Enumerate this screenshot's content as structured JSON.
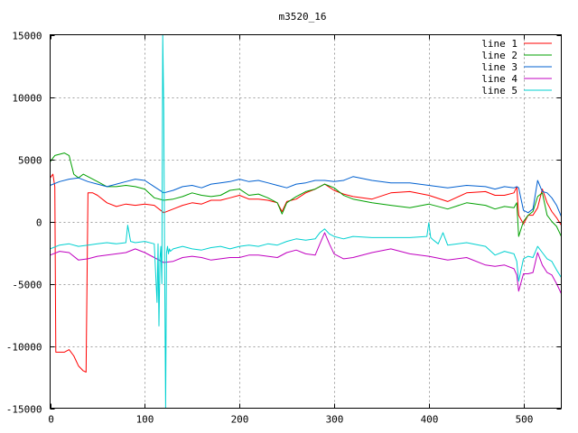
{
  "chart_data": {
    "type": "line",
    "title": "m3520_16",
    "xlabel": "",
    "ylabel": "",
    "xlim": [
      0,
      540
    ],
    "ylim": [
      -15000,
      15000
    ],
    "x_ticks": [
      0,
      100,
      200,
      300,
      400,
      500
    ],
    "y_ticks": [
      -15000,
      -10000,
      -5000,
      0,
      5000,
      10000,
      15000
    ],
    "grid": true,
    "legend_position": "top-right",
    "series": [
      {
        "name": "line 1",
        "color": "#ff0000",
        "x": [
          0,
          3,
          5,
          6,
          10,
          15,
          20,
          25,
          30,
          35,
          38,
          40,
          45,
          50,
          60,
          70,
          80,
          90,
          100,
          110,
          120,
          130,
          140,
          150,
          160,
          170,
          180,
          190,
          200,
          210,
          220,
          230,
          240,
          245,
          250,
          260,
          270,
          280,
          290,
          300,
          310,
          320,
          340,
          360,
          380,
          400,
          420,
          440,
          460,
          470,
          480,
          490,
          493,
          495,
          500,
          505,
          510,
          515,
          520,
          525,
          530,
          535,
          540
        ],
        "y": [
          3500,
          3800,
          2800,
          -10500,
          -10500,
          -10500,
          -10300,
          -10800,
          -11600,
          -12000,
          -12100,
          2300,
          2300,
          2100,
          1500,
          1200,
          1400,
          1300,
          1400,
          1300,
          700,
          1000,
          1300,
          1500,
          1400,
          1700,
          1700,
          1900,
          2100,
          1800,
          1800,
          1700,
          1500,
          800,
          1600,
          1800,
          2300,
          2600,
          3000,
          2500,
          2200,
          2000,
          1800,
          2300,
          2400,
          2100,
          1600,
          2300,
          2400,
          2100,
          2100,
          2300,
          2800,
          500,
          -200,
          500,
          500,
          1100,
          2600,
          1500,
          800,
          300,
          -300
        ]
      },
      {
        "name": "line 2",
        "color": "#00a000",
        "x": [
          0,
          5,
          10,
          15,
          20,
          25,
          30,
          35,
          40,
          45,
          50,
          60,
          70,
          80,
          90,
          100,
          110,
          120,
          130,
          140,
          150,
          160,
          170,
          180,
          190,
          200,
          210,
          220,
          230,
          240,
          245,
          250,
          260,
          270,
          280,
          290,
          300,
          310,
          320,
          340,
          360,
          380,
          400,
          420,
          440,
          460,
          470,
          480,
          490,
          493,
          495,
          500,
          505,
          510,
          515,
          520,
          525,
          530,
          535,
          540
        ],
        "y": [
          4800,
          5300,
          5400,
          5500,
          5300,
          3800,
          3500,
          3800,
          3600,
          3400,
          3200,
          2800,
          2800,
          2900,
          2800,
          2600,
          1900,
          1700,
          1800,
          2000,
          2300,
          2100,
          2000,
          2100,
          2500,
          2600,
          2100,
          2200,
          1900,
          1500,
          600,
          1500,
          2000,
          2400,
          2600,
          3000,
          2700,
          2100,
          1800,
          1500,
          1300,
          1100,
          1400,
          1000,
          1500,
          1300,
          1000,
          1200,
          1100,
          1500,
          -1200,
          0,
          500,
          800,
          2000,
          2300,
          500,
          0,
          -400,
          -1200
        ]
      },
      {
        "name": "line 3",
        "color": "#0060d0",
        "x": [
          0,
          10,
          20,
          30,
          40,
          50,
          60,
          70,
          80,
          90,
          100,
          110,
          120,
          130,
          140,
          150,
          160,
          170,
          180,
          190,
          200,
          210,
          220,
          230,
          240,
          250,
          260,
          270,
          280,
          290,
          300,
          310,
          320,
          340,
          360,
          380,
          400,
          420,
          440,
          460,
          470,
          480,
          490,
          493,
          495,
          500,
          505,
          510,
          515,
          520,
          525,
          530,
          535,
          540
        ],
        "y": [
          2900,
          3200,
          3400,
          3500,
          3200,
          3000,
          2800,
          3000,
          3200,
          3400,
          3300,
          2800,
          2300,
          2500,
          2800,
          2900,
          2700,
          3000,
          3100,
          3200,
          3400,
          3200,
          3300,
          3100,
          2900,
          2700,
          3000,
          3100,
          3300,
          3300,
          3200,
          3300,
          3600,
          3300,
          3100,
          3100,
          2900,
          2700,
          2900,
          2800,
          2600,
          2800,
          2700,
          2800,
          2700,
          900,
          700,
          1000,
          3300,
          2400,
          2300,
          1900,
          1300,
          400
        ]
      },
      {
        "name": "line 4",
        "color": "#c000c0",
        "x": [
          0,
          10,
          20,
          30,
          40,
          50,
          60,
          70,
          80,
          90,
          100,
          110,
          120,
          130,
          140,
          150,
          160,
          170,
          180,
          190,
          200,
          210,
          220,
          230,
          240,
          250,
          260,
          270,
          280,
          285,
          290,
          295,
          300,
          310,
          320,
          340,
          360,
          380,
          400,
          420,
          440,
          460,
          470,
          480,
          490,
          493,
          495,
          500,
          505,
          510,
          515,
          520,
          525,
          530,
          535,
          540
        ],
        "y": [
          -2700,
          -2400,
          -2500,
          -3100,
          -3000,
          -2800,
          -2700,
          -2600,
          -2500,
          -2200,
          -2500,
          -2900,
          -3300,
          -3200,
          -2900,
          -2800,
          -2900,
          -3100,
          -3000,
          -2900,
          -2900,
          -2700,
          -2700,
          -2800,
          -2900,
          -2500,
          -2300,
          -2600,
          -2700,
          -1800,
          -900,
          -1800,
          -2600,
          -3000,
          -2900,
          -2500,
          -2200,
          -2600,
          -2800,
          -3100,
          -2900,
          -3500,
          -3600,
          -3500,
          -3800,
          -4300,
          -5600,
          -4200,
          -4200,
          -4100,
          -2500,
          -3500,
          -4100,
          -4300,
          -5000,
          -5800
        ]
      },
      {
        "name": "line 5",
        "color": "#00d0d0",
        "x": [
          0,
          10,
          20,
          30,
          40,
          50,
          60,
          70,
          80,
          82,
          85,
          90,
          100,
          110,
          113,
          114,
          115,
          116,
          117,
          118,
          119,
          120,
          121,
          122,
          123,
          124,
          125,
          126,
          127,
          130,
          140,
          150,
          160,
          170,
          180,
          190,
          200,
          210,
          220,
          230,
          240,
          250,
          260,
          270,
          280,
          285,
          290,
          295,
          300,
          310,
          320,
          340,
          360,
          380,
          398,
          400,
          402,
          405,
          410,
          415,
          420,
          440,
          460,
          470,
          480,
          490,
          493,
          495,
          500,
          505,
          510,
          515,
          520,
          525,
          530,
          535,
          540
        ],
        "y": [
          -2200,
          -1900,
          -1800,
          -2000,
          -1900,
          -1800,
          -1700,
          -1800,
          -1700,
          -300,
          -1600,
          -1700,
          -1600,
          -1800,
          -6500,
          -1800,
          -8400,
          -3000,
          -2000,
          -5000,
          15000,
          9000,
          -3500,
          -15000,
          -2500,
          -2000,
          -2600,
          -2200,
          -2400,
          -2200,
          -2000,
          -2200,
          -2300,
          -2100,
          -2000,
          -2200,
          -2000,
          -1900,
          -2000,
          -1800,
          -1900,
          -1600,
          -1400,
          -1500,
          -1400,
          -900,
          -600,
          -1000,
          -1200,
          -1400,
          -1200,
          -1300,
          -1300,
          -1300,
          -1200,
          -100,
          -1300,
          -1500,
          -1800,
          -900,
          -1900,
          -1700,
          -2000,
          -2700,
          -2400,
          -2600,
          -3200,
          -4800,
          -3000,
          -2800,
          -2900,
          -2000,
          -2500,
          -3000,
          -3200,
          -3900,
          -4500
        ]
      }
    ]
  }
}
